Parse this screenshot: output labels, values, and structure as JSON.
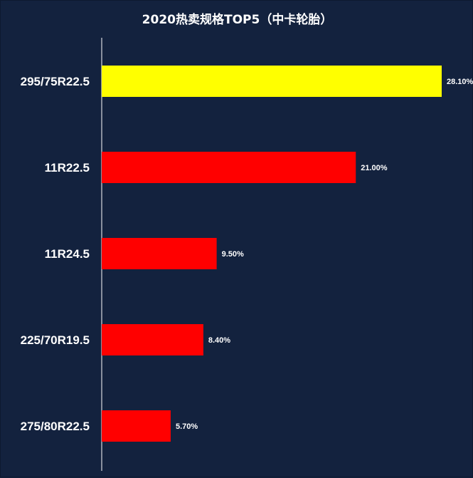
{
  "chart_data": {
    "type": "bar",
    "orientation": "horizontal",
    "title": "2020热卖规格TOP5（中卡轮胎）",
    "categories": [
      "295/75R22.5",
      "11R22.5",
      "11R24.5",
      "225/70R19.5",
      "275/80R22.5"
    ],
    "values": [
      28.1,
      21.0,
      9.5,
      8.4,
      5.7
    ],
    "value_labels": [
      "28.10%",
      "21.00%",
      "9.50%",
      "8.40%",
      "5.70%"
    ],
    "unit": "%",
    "xlim": [
      0,
      28.1
    ],
    "grid": false,
    "legend": "none",
    "colors": {
      "background": "#13223e",
      "highlight_bar": "#ffff00",
      "bar": "#ff0000",
      "axis": "#ffffff",
      "text": "#ffffff"
    }
  }
}
